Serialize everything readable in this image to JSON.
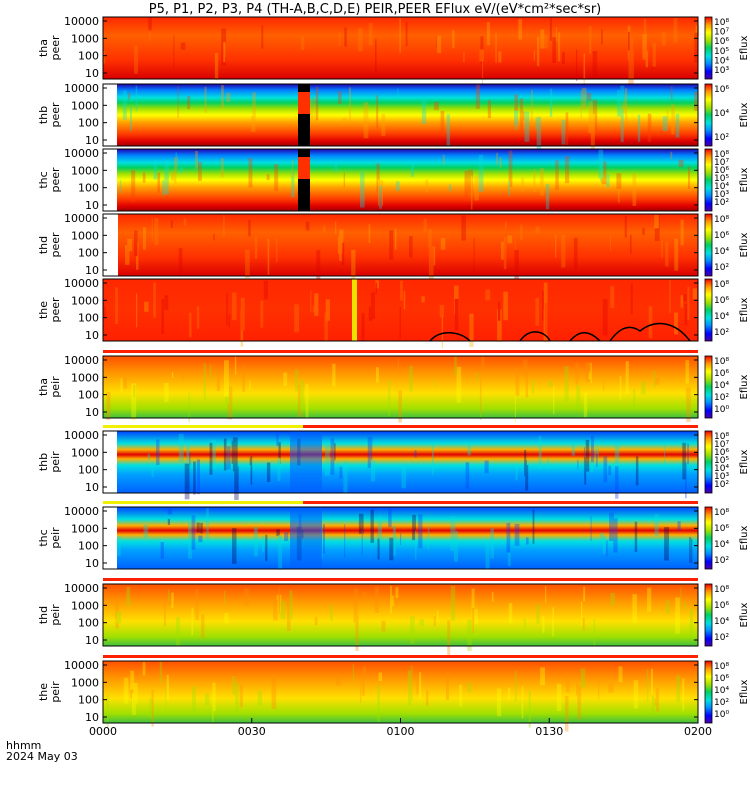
{
  "title": "P5, P1, P2, P3, P4 (TH-A,B,C,D,E) PEIR,PEER EFlux eV/(eV*cm²*sec*sr)",
  "footer": {
    "hhmm": "hhmm",
    "date": "2024 May 03"
  },
  "colors": {
    "red": "#ff2000",
    "yellow": "#f0f000",
    "cbar": [
      "#4c00a8",
      "#0000ff",
      "#0090ff",
      "#00e0e0",
      "#00d060",
      "#a0e000",
      "#ffff00",
      "#ffa000",
      "#ff4000",
      "#e00000"
    ]
  },
  "chart_data": {
    "type": "heatmap",
    "x_ticks": [
      "0000",
      "0030",
      "0100",
      "0130",
      "0200"
    ],
    "y_ticks": [
      "10",
      "100",
      "1000",
      "10000"
    ],
    "colorbar_label": "Eflux",
    "panels": [
      {
        "name": "tha peer",
        "line1": "tha",
        "line2": "peer",
        "style": "peer",
        "cbar_ticks": [
          "10⁸",
          "10⁷",
          "10⁶",
          "10⁵",
          "10⁴",
          "10³"
        ]
      },
      {
        "name": "thb peer",
        "line1": "thb",
        "line2": "peer",
        "style": "peer2",
        "cbar_ticks": [
          "10⁶",
          "10⁴",
          "10²"
        ]
      },
      {
        "name": "thc peer",
        "line1": "thc",
        "line2": "peer",
        "style": "peer2",
        "cbar_ticks": [
          "10⁸",
          "10⁷",
          "10⁶",
          "10⁵",
          "10⁴",
          "10³",
          "10²"
        ]
      },
      {
        "name": "thd peer",
        "line1": "thd",
        "line2": "peer",
        "style": "peer",
        "cbar_ticks": [
          "10⁸",
          "10⁶",
          "10⁴",
          "10²"
        ]
      },
      {
        "name": "the peer",
        "line1": "the",
        "line2": "peer",
        "style": "peer3",
        "cbar_ticks": [
          "10⁸",
          "10⁶",
          "10⁴",
          "10²"
        ]
      },
      {
        "name": "tha peir",
        "line1": "tha",
        "line2": "peir",
        "style": "peir",
        "cbar_ticks": [
          "10⁸",
          "10⁶",
          "10⁴",
          "10²",
          "10⁰"
        ]
      },
      {
        "name": "thb peir",
        "line1": "thb",
        "line2": "peir",
        "style": "peir2",
        "cbar_ticks": [
          "10⁸",
          "10⁷",
          "10⁶",
          "10⁵",
          "10⁴",
          "10³",
          "10²"
        ]
      },
      {
        "name": "thc peir",
        "line1": "thc",
        "line2": "peir",
        "style": "peir2",
        "cbar_ticks": [
          "10⁸",
          "10⁶",
          "10⁴",
          "10²"
        ]
      },
      {
        "name": "thd peir",
        "line1": "thd",
        "line2": "peir",
        "style": "peir",
        "cbar_ticks": [
          "10⁸",
          "10⁶",
          "10⁴",
          "10²"
        ]
      },
      {
        "name": "the peir",
        "line1": "the",
        "line2": "peir",
        "style": "peir",
        "cbar_ticks": [
          "10⁸",
          "10⁶",
          "10⁴",
          "10²",
          "10⁰"
        ]
      }
    ]
  }
}
